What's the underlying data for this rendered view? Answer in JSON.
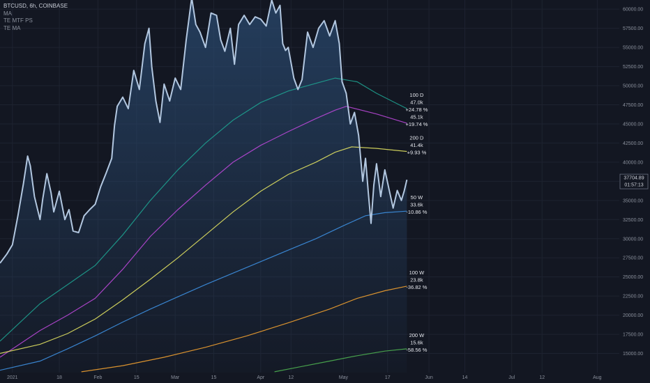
{
  "legend": {
    "title": "BTCUSD, 6h, COINBASE",
    "indicators": [
      "MA",
      "TE MTF PS",
      "TE MA"
    ]
  },
  "price_tag": {
    "price": "37704.89",
    "countdown": "01:57:13"
  },
  "colors": {
    "background": "#131722",
    "price": "#b2c7e0",
    "price_fill_top": "#2a4a70",
    "ma_100d": "#1e9e8e",
    "ma_100d_alt": "#b847d6",
    "ma_200d": "#e0e060",
    "ma_50w": "#3d8fe0",
    "ma_100w": "#f0a030",
    "ma_200w": "#4caf50"
  },
  "chart_data": {
    "type": "line",
    "title": "BTCUSD, 6h, COINBASE",
    "xlabel": "",
    "ylabel": "",
    "x_domain": [
      -4.5,
      220
    ],
    "ylim": [
      12500,
      61200
    ],
    "grid": true,
    "x_ticks": [
      {
        "day": 0,
        "label": "2021"
      },
      {
        "day": 17,
        "label": "18"
      },
      {
        "day": 31,
        "label": "Feb"
      },
      {
        "day": 45,
        "label": "15"
      },
      {
        "day": 59,
        "label": "Mar"
      },
      {
        "day": 73,
        "label": "15"
      },
      {
        "day": 90,
        "label": "Apr"
      },
      {
        "day": 101,
        "label": "12"
      },
      {
        "day": 120,
        "label": "May"
      },
      {
        "day": 136,
        "label": "17"
      },
      {
        "day": 151,
        "label": "Jun"
      },
      {
        "day": 164,
        "label": "14"
      },
      {
        "day": 181,
        "label": "Jul"
      },
      {
        "day": 192,
        "label": "12"
      },
      {
        "day": 212,
        "label": "Aug"
      }
    ],
    "y_ticks": [
      15000,
      17500,
      20000,
      22500,
      25000,
      27500,
      30000,
      32500,
      35000,
      37500,
      40000,
      42500,
      45000,
      47500,
      50000,
      52500,
      55000,
      57500,
      60000
    ],
    "price_series": {
      "name": "BTCUSD",
      "points": [
        [
          -4.5,
          26800
        ],
        [
          -2,
          28000
        ],
        [
          0,
          29200
        ],
        [
          2,
          33000
        ],
        [
          4,
          37200
        ],
        [
          5.5,
          40800
        ],
        [
          6.5,
          39500
        ],
        [
          8,
          35500
        ],
        [
          10,
          32500
        ],
        [
          11,
          35200
        ],
        [
          12.5,
          38500
        ],
        [
          14,
          36000
        ],
        [
          15,
          33500
        ],
        [
          17,
          36200
        ],
        [
          19,
          32500
        ],
        [
          20.5,
          33800
        ],
        [
          22,
          31000
        ],
        [
          24,
          30800
        ],
        [
          26,
          33000
        ],
        [
          28,
          33800
        ],
        [
          30,
          34500
        ],
        [
          32,
          36800
        ],
        [
          34,
          38600
        ],
        [
          36,
          40500
        ],
        [
          37,
          44800
        ],
        [
          38,
          47300
        ],
        [
          40,
          48500
        ],
        [
          42,
          47000
        ],
        [
          44,
          52000
        ],
        [
          46,
          49500
        ],
        [
          48,
          55500
        ],
        [
          49.5,
          57500
        ],
        [
          50.5,
          52500
        ],
        [
          52,
          48000
        ],
        [
          53.5,
          45200
        ],
        [
          55,
          50200
        ],
        [
          57,
          48000
        ],
        [
          59,
          51000
        ],
        [
          61,
          49500
        ],
        [
          63,
          56000
        ],
        [
          65,
          61500
        ],
        [
          66.5,
          58000
        ],
        [
          68,
          57000
        ],
        [
          70,
          55000
        ],
        [
          72,
          59500
        ],
        [
          74,
          59200
        ],
        [
          75.5,
          56000
        ],
        [
          77,
          54500
        ],
        [
          79,
          57500
        ],
        [
          80.5,
          52800
        ],
        [
          82,
          58000
        ],
        [
          84,
          59200
        ],
        [
          86,
          58000
        ],
        [
          88,
          59000
        ],
        [
          90,
          58700
        ],
        [
          92,
          57800
        ],
        [
          94,
          61200
        ],
        [
          95.5,
          59500
        ],
        [
          97,
          60500
        ],
        [
          98,
          55500
        ],
        [
          99,
          54600
        ],
        [
          100,
          55000
        ],
        [
          102,
          51000
        ],
        [
          103.5,
          49500
        ],
        [
          105,
          50800
        ],
        [
          107,
          57000
        ],
        [
          109,
          55000
        ],
        [
          111,
          57500
        ],
        [
          113,
          58500
        ],
        [
          115,
          56500
        ],
        [
          117,
          58500
        ],
        [
          118.5,
          55500
        ],
        [
          119.5,
          50500
        ],
        [
          121,
          49000
        ],
        [
          122.5,
          45000
        ],
        [
          124,
          46500
        ],
        [
          125.5,
          43500
        ],
        [
          127,
          37500
        ],
        [
          128,
          40500
        ],
        [
          129,
          36000
        ],
        [
          130,
          32000
        ],
        [
          131,
          37000
        ],
        [
          132,
          39800
        ],
        [
          133.5,
          35500
        ],
        [
          135,
          39000
        ],
        [
          136.5,
          36500
        ],
        [
          138,
          34000
        ],
        [
          139.5,
          36300
        ],
        [
          141,
          35000
        ],
        [
          142,
          36200
        ],
        [
          143,
          37704
        ]
      ]
    },
    "series": [
      {
        "name": "100 D",
        "value": "47.0k",
        "pct": "+24.78 %",
        "color_key": "ma_100d",
        "points": [
          [
            -4.5,
            16600
          ],
          [
            10,
            21500
          ],
          [
            20,
            24000
          ],
          [
            30,
            26500
          ],
          [
            40,
            30500
          ],
          [
            50,
            35000
          ],
          [
            60,
            39000
          ],
          [
            70,
            42500
          ],
          [
            80,
            45500
          ],
          [
            90,
            47800
          ],
          [
            100,
            49300
          ],
          [
            110,
            50300
          ],
          [
            117,
            51000
          ],
          [
            125,
            50500
          ],
          [
            132,
            49000
          ],
          [
            143,
            47000
          ]
        ]
      },
      {
        "name": "",
        "value": "45.1k",
        "pct": "+19.74 %",
        "color_key": "ma_100d_alt",
        "points": [
          [
            -4.5,
            14500
          ],
          [
            10,
            18000
          ],
          [
            20,
            20000
          ],
          [
            30,
            22200
          ],
          [
            40,
            26000
          ],
          [
            50,
            30300
          ],
          [
            60,
            33800
          ],
          [
            70,
            37000
          ],
          [
            80,
            40000
          ],
          [
            90,
            42200
          ],
          [
            100,
            44000
          ],
          [
            110,
            45700
          ],
          [
            117,
            46800
          ],
          [
            121,
            47300
          ],
          [
            132,
            46300
          ],
          [
            143,
            45100
          ]
        ]
      },
      {
        "name": "200 D",
        "value": "41.4k",
        "pct": "+9.93 %",
        "color_key": "ma_200d",
        "points": [
          [
            -4.5,
            15000
          ],
          [
            10,
            16200
          ],
          [
            20,
            17600
          ],
          [
            30,
            19500
          ],
          [
            40,
            22000
          ],
          [
            50,
            24700
          ],
          [
            60,
            27500
          ],
          [
            70,
            30500
          ],
          [
            80,
            33500
          ],
          [
            90,
            36200
          ],
          [
            100,
            38400
          ],
          [
            110,
            40000
          ],
          [
            117,
            41300
          ],
          [
            123,
            42000
          ],
          [
            132,
            41800
          ],
          [
            143,
            41400
          ]
        ]
      },
      {
        "name": "50 W",
        "value": "33.6k",
        "pct": "-10.86 %",
        "color_key": "ma_50w",
        "points": [
          [
            -4.5,
            12800
          ],
          [
            10,
            14000
          ],
          [
            20,
            15600
          ],
          [
            30,
            17300
          ],
          [
            40,
            19100
          ],
          [
            50,
            20800
          ],
          [
            60,
            22400
          ],
          [
            70,
            24000
          ],
          [
            80,
            25500
          ],
          [
            90,
            27000
          ],
          [
            100,
            28500
          ],
          [
            110,
            30000
          ],
          [
            120,
            31700
          ],
          [
            128,
            33000
          ],
          [
            135,
            33400
          ],
          [
            143,
            33600
          ]
        ]
      },
      {
        "name": "100 W",
        "value": "23.8k",
        "pct": "-36.82 %",
        "color_key": "ma_100w",
        "points": [
          [
            25,
            12600
          ],
          [
            40,
            13400
          ],
          [
            55,
            14500
          ],
          [
            70,
            15800
          ],
          [
            85,
            17300
          ],
          [
            100,
            19000
          ],
          [
            115,
            20800
          ],
          [
            125,
            22200
          ],
          [
            135,
            23200
          ],
          [
            143,
            23800
          ]
        ]
      },
      {
        "name": "200 W",
        "value": "15.6k",
        "pct": "-58.56 %",
        "color_key": "ma_200w",
        "points": [
          [
            95,
            12600
          ],
          [
            105,
            13300
          ],
          [
            115,
            14000
          ],
          [
            125,
            14700
          ],
          [
            135,
            15300
          ],
          [
            143,
            15600
          ]
        ]
      }
    ]
  }
}
